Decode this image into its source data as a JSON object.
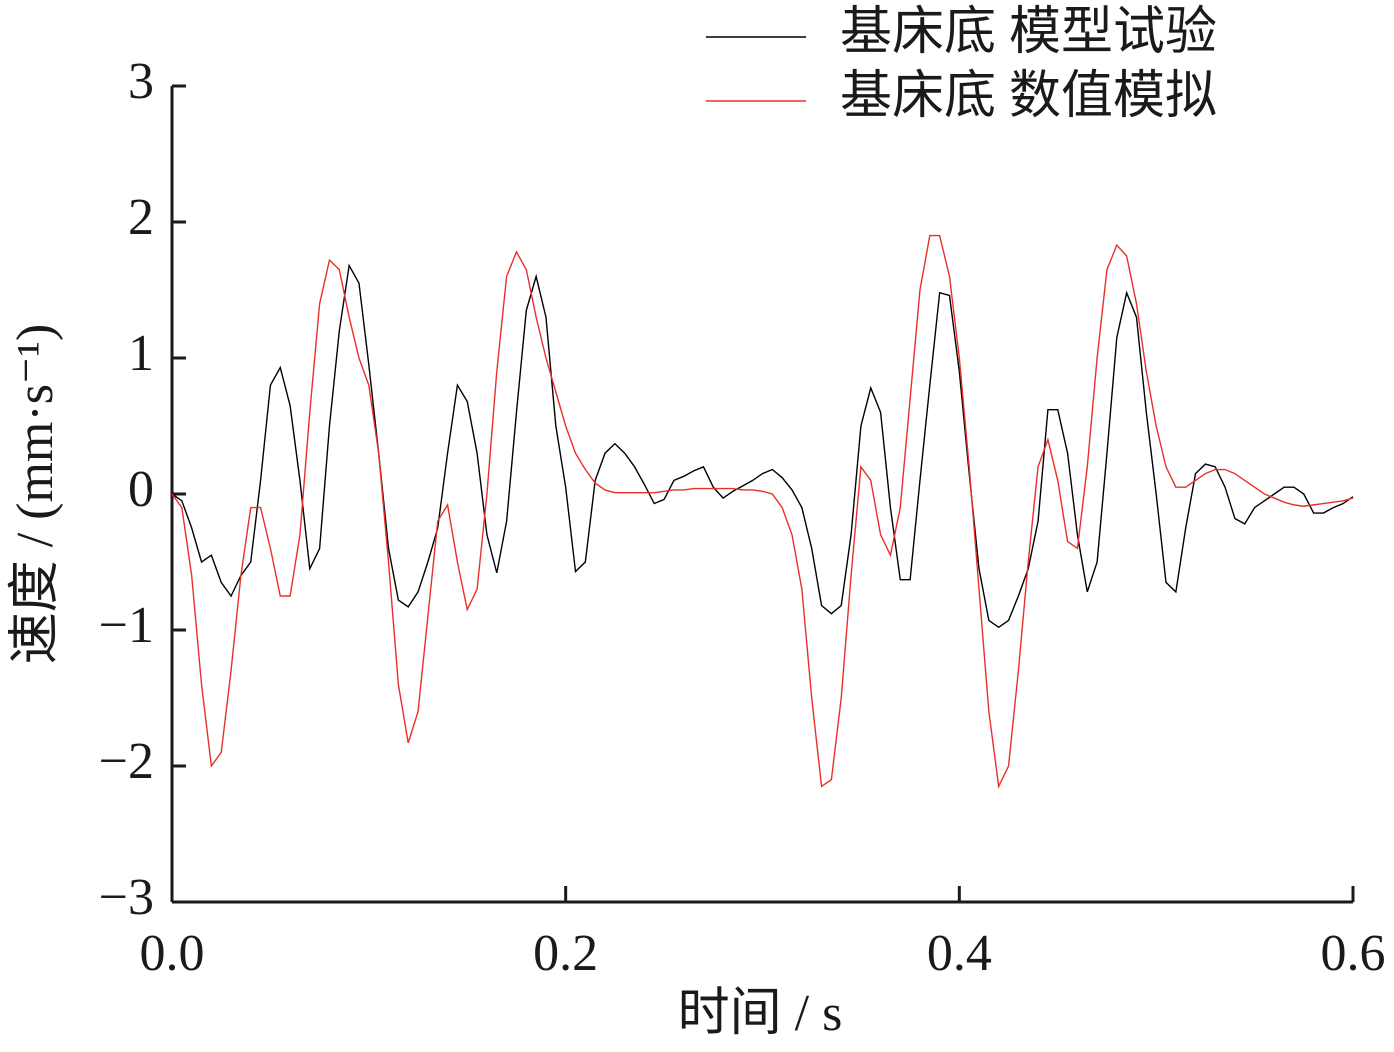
{
  "chart_data": {
    "type": "line",
    "xlabel": "时间 / s",
    "ylabel": "速度 / (mm·s⁻¹)",
    "x": [
      0,
      0.005,
      0.01,
      0.015,
      0.02,
      0.025,
      0.03,
      0.035,
      0.04,
      0.045,
      0.05,
      0.055,
      0.06,
      0.065,
      0.07,
      0.075,
      0.08,
      0.085,
      0.09,
      0.095,
      0.1,
      0.105,
      0.11,
      0.115,
      0.12,
      0.125,
      0.13,
      0.135,
      0.14,
      0.145,
      0.15,
      0.155,
      0.16,
      0.165,
      0.17,
      0.175,
      0.18,
      0.185,
      0.19,
      0.195,
      0.2,
      0.205,
      0.21,
      0.215,
      0.22,
      0.225,
      0.23,
      0.235,
      0.24,
      0.245,
      0.25,
      0.255,
      0.26,
      0.265,
      0.27,
      0.275,
      0.28,
      0.285,
      0.29,
      0.295,
      0.3,
      0.305,
      0.31,
      0.315,
      0.32,
      0.325,
      0.33,
      0.335,
      0.34,
      0.345,
      0.35,
      0.355,
      0.36,
      0.365,
      0.37,
      0.375,
      0.38,
      0.385,
      0.39,
      0.395,
      0.4,
      0.405,
      0.41,
      0.415,
      0.42,
      0.425,
      0.43,
      0.435,
      0.44,
      0.445,
      0.45,
      0.455,
      0.46,
      0.465,
      0.47,
      0.475,
      0.48,
      0.485,
      0.49,
      0.495,
      0.5,
      0.505,
      0.51,
      0.515,
      0.52,
      0.525,
      0.53,
      0.535,
      0.54,
      0.545,
      0.55,
      0.555,
      0.56,
      0.565,
      0.57,
      0.575,
      0.58,
      0.585,
      0.59,
      0.595,
      0.6
    ],
    "series": [
      {
        "name": "基床底 模型试验",
        "color": "#000000",
        "values": [
          0,
          -0.05,
          -0.25,
          -0.5,
          -0.45,
          -0.65,
          -0.75,
          -0.6,
          -0.5,
          0.1,
          0.8,
          0.93,
          0.65,
          0.1,
          -0.55,
          -0.4,
          0.5,
          1.2,
          1.68,
          1.55,
          0.95,
          0.3,
          -0.4,
          -0.78,
          -0.83,
          -0.72,
          -0.5,
          -0.25,
          0.3,
          0.8,
          0.68,
          0.3,
          -0.3,
          -0.58,
          -0.2,
          0.6,
          1.35,
          1.6,
          1.3,
          0.5,
          0.05,
          -0.57,
          -0.5,
          0.1,
          0.3,
          0.37,
          0.3,
          0.2,
          0.07,
          -0.07,
          -0.04,
          0.1,
          0.13,
          0.17,
          0.2,
          0.05,
          -0.03,
          0.02,
          0.06,
          0.1,
          0.15,
          0.18,
          0.12,
          0.03,
          -0.1,
          -0.4,
          -0.82,
          -0.88,
          -0.82,
          -0.3,
          0.5,
          0.78,
          0.6,
          -0.1,
          -0.63,
          -0.63,
          0.1,
          0.8,
          1.48,
          1.46,
          0.9,
          0.15,
          -0.55,
          -0.93,
          -0.98,
          -0.93,
          -0.75,
          -0.55,
          -0.2,
          0.62,
          0.62,
          0.3,
          -0.3,
          -0.72,
          -0.5,
          0.3,
          1.15,
          1.48,
          1.3,
          0.6,
          0,
          -0.65,
          -0.72,
          -0.25,
          0.15,
          0.22,
          0.2,
          0.05,
          -0.18,
          -0.22,
          -0.1,
          -0.05,
          0,
          0.05,
          0.05,
          0,
          -0.14,
          -0.14,
          -0.1,
          -0.07,
          -0.02
        ]
      },
      {
        "name": "基床底 数值模拟",
        "color": "#e8302a",
        "values": [
          0,
          -0.1,
          -0.6,
          -1.4,
          -2.0,
          -1.9,
          -1.3,
          -0.6,
          -0.1,
          -0.1,
          -0.4,
          -0.75,
          -0.75,
          -0.3,
          0.6,
          1.4,
          1.72,
          1.65,
          1.3,
          1.0,
          0.8,
          0.3,
          -0.5,
          -1.4,
          -1.83,
          -1.6,
          -0.9,
          -0.2,
          -0.08,
          -0.5,
          -0.85,
          -0.7,
          0,
          0.9,
          1.6,
          1.78,
          1.65,
          1.3,
          1.0,
          0.75,
          0.5,
          0.3,
          0.18,
          0.08,
          0.03,
          0.01,
          0.01,
          0.01,
          0.01,
          0.01,
          0.02,
          0.03,
          0.03,
          0.04,
          0.04,
          0.04,
          0.04,
          0.04,
          0.03,
          0.03,
          0.02,
          0,
          -0.1,
          -0.3,
          -0.7,
          -1.5,
          -2.15,
          -2.1,
          -1.5,
          -0.6,
          0.2,
          0.1,
          -0.3,
          -0.45,
          -0.1,
          0.7,
          1.5,
          1.9,
          1.9,
          1.6,
          1.0,
          0.2,
          -0.7,
          -1.6,
          -2.15,
          -2.0,
          -1.3,
          -0.5,
          0.2,
          0.4,
          0.1,
          -0.35,
          -0.4,
          0.2,
          1.0,
          1.65,
          1.83,
          1.75,
          1.4,
          0.9,
          0.5,
          0.2,
          0.05,
          0.05,
          0.1,
          0.15,
          0.18,
          0.18,
          0.15,
          0.1,
          0.05,
          0,
          -0.03,
          -0.06,
          -0.08,
          -0.09,
          -0.08,
          -0.07,
          -0.06,
          -0.05,
          -0.03
        ]
      }
    ],
    "xlim": [
      0,
      0.6
    ],
    "xticks": [
      {
        "value": 0,
        "label": "0.0"
      },
      0.2,
      0.4,
      0.6
    ],
    "ylim": [
      -3,
      3
    ],
    "yticks": [
      {
        "value": -3,
        "label": "−3"
      },
      {
        "value": -2,
        "label": "−2"
      },
      {
        "value": -1,
        "label": "−1"
      },
      0,
      1,
      2,
      3
    ],
    "grid": false,
    "legend": "upper right"
  }
}
